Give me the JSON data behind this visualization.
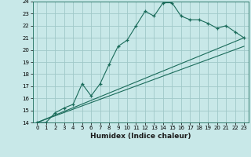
{
  "title": "",
  "xlabel": "Humidex (Indice chaleur)",
  "background_color": "#c8e8e8",
  "grid_color": "#a0c8c8",
  "line_color": "#1a6b5a",
  "xlim": [
    -0.5,
    23.5
  ],
  "ylim": [
    14,
    24
  ],
  "xticks": [
    0,
    1,
    2,
    3,
    4,
    5,
    6,
    7,
    8,
    9,
    10,
    11,
    12,
    13,
    14,
    15,
    16,
    17,
    18,
    19,
    20,
    21,
    22,
    23
  ],
  "yticks": [
    14,
    15,
    16,
    17,
    18,
    19,
    20,
    21,
    22,
    23,
    24
  ],
  "line1_x": [
    0,
    1,
    2,
    3,
    4,
    5,
    6,
    7,
    8,
    9,
    10,
    11,
    12,
    13,
    14,
    15,
    16,
    17,
    18,
    19,
    20,
    21,
    22,
    23
  ],
  "line1_y": [
    14,
    14,
    14.8,
    15.2,
    15.5,
    17.2,
    16.2,
    17.2,
    18.8,
    20.3,
    20.8,
    22.0,
    23.2,
    22.8,
    23.9,
    23.9,
    22.8,
    22.5,
    22.5,
    22.2,
    21.8,
    22.0,
    21.5,
    21.0
  ],
  "line2_x": [
    0,
    23
  ],
  "line2_y": [
    14,
    21.0
  ],
  "line3_x": [
    0,
    23
  ],
  "line3_y": [
    14,
    20.3
  ]
}
